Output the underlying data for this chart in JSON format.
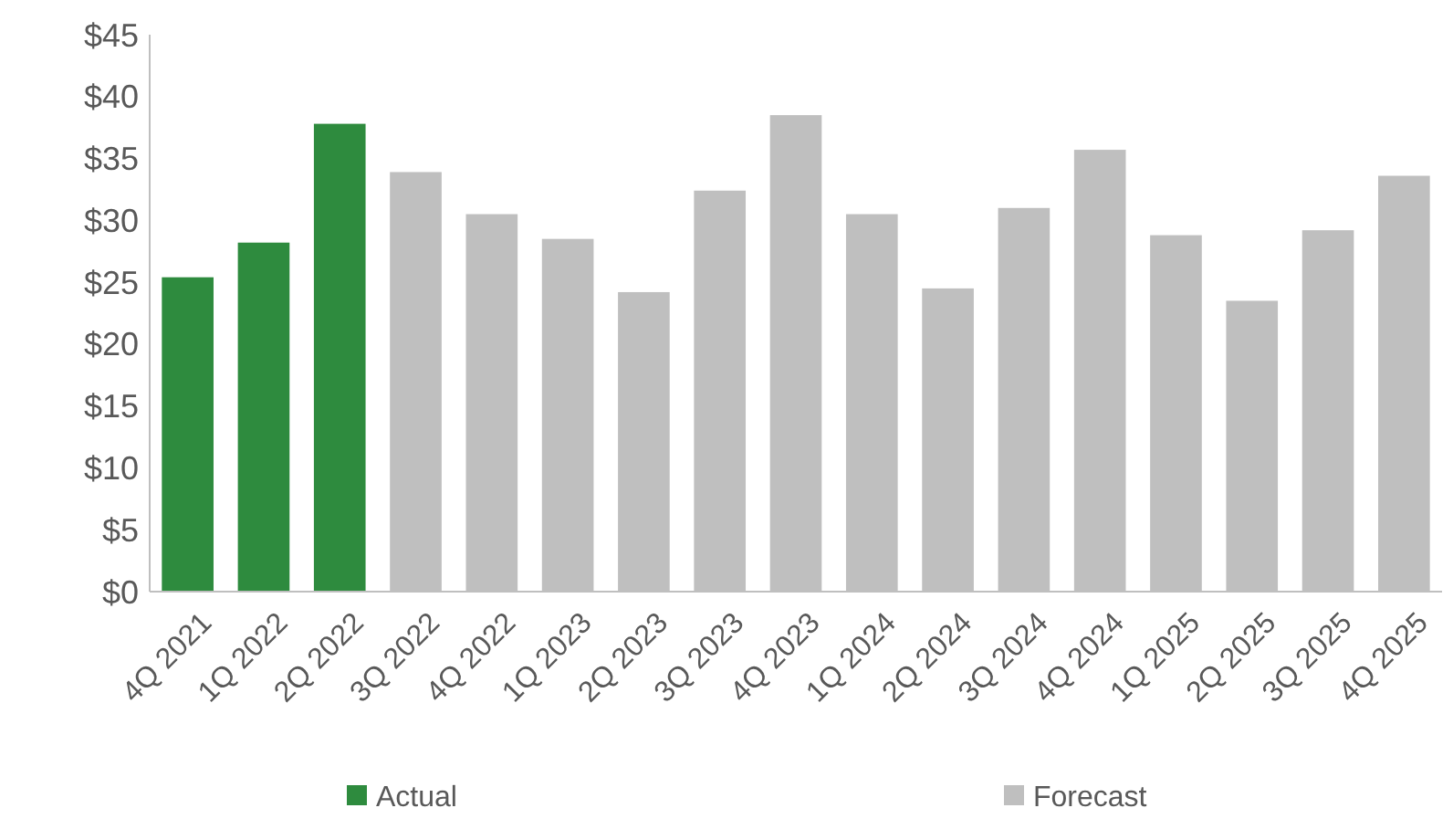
{
  "chart_data": {
    "type": "bar",
    "categories": [
      "4Q 2021",
      "1Q 2022",
      "2Q 2022",
      "3Q 2022",
      "4Q 2022",
      "1Q 2023",
      "2Q 2023",
      "3Q 2023",
      "4Q 2023",
      "1Q 2024",
      "2Q 2024",
      "3Q 2024",
      "4Q 2024",
      "1Q 2025",
      "2Q 2025",
      "3Q 2025",
      "4Q 2025"
    ],
    "series": [
      {
        "name": "Actual",
        "color": "#2e8b3e",
        "values": [
          25.4,
          28.2,
          37.8,
          null,
          null,
          null,
          null,
          null,
          null,
          null,
          null,
          null,
          null,
          null,
          null,
          null,
          null
        ]
      },
      {
        "name": "Forecast",
        "color": "#bfbfbf",
        "values": [
          null,
          null,
          null,
          33.9,
          30.5,
          28.5,
          24.2,
          32.4,
          38.5,
          30.5,
          24.5,
          31.0,
          35.7,
          28.8,
          23.5,
          29.2,
          33.6
        ]
      }
    ],
    "ylim": [
      0,
      45
    ],
    "yticks": [
      {
        "value": 0,
        "label": "$0"
      },
      {
        "value": 5,
        "label": "$5"
      },
      {
        "value": 10,
        "label": "$10"
      },
      {
        "value": 15,
        "label": "$15"
      },
      {
        "value": 20,
        "label": "$20"
      },
      {
        "value": 25,
        "label": "$25"
      },
      {
        "value": 30,
        "label": "$30"
      },
      {
        "value": 35,
        "label": "$35"
      },
      {
        "value": 40,
        "label": "$40"
      },
      {
        "value": 45,
        "label": "$45"
      }
    ],
    "grid": false,
    "legend": "bottom"
  }
}
